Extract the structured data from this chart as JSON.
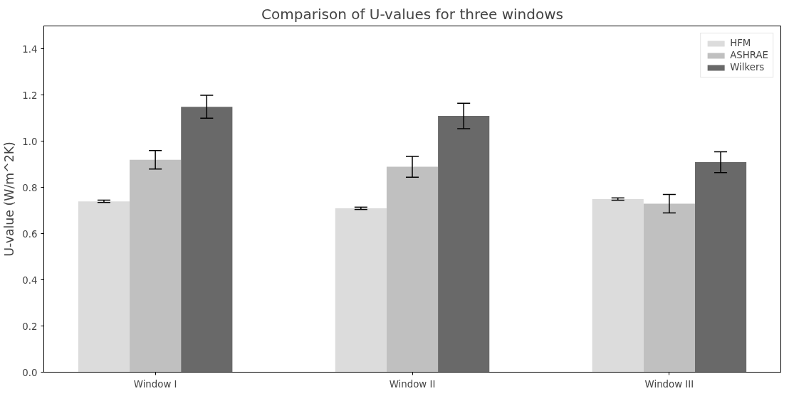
{
  "chart_data": {
    "type": "bar",
    "title": "Comparison of U-values for three windows",
    "ylabel": "U-value (W/m^2K)",
    "categories": [
      "Window I",
      "Window II",
      "Window III"
    ],
    "series": [
      {
        "name": "HFM",
        "color": "#dcdcdc",
        "values": [
          0.74,
          0.71,
          0.75
        ],
        "errors": [
          0.005,
          0.005,
          0.005
        ]
      },
      {
        "name": "ASHRAE",
        "color": "#c0c0c0",
        "values": [
          0.92,
          0.89,
          0.73
        ],
        "errors": [
          0.04,
          0.045,
          0.04
        ]
      },
      {
        "name": "Wilkers",
        "color": "#696969",
        "values": [
          1.15,
          1.11,
          0.91
        ],
        "errors": [
          0.05,
          0.055,
          0.045
        ]
      }
    ],
    "ylim": [
      0,
      1.5
    ],
    "yticks": [
      {
        "value": 0,
        "label": "0.0"
      },
      {
        "value": 0.2,
        "label": "0.2"
      },
      {
        "value": 0.4,
        "label": "0.4"
      },
      {
        "value": 0.6,
        "label": "0.6"
      },
      {
        "value": 0.8,
        "label": "0.8"
      },
      {
        "value": 1.0,
        "label": "1.0"
      },
      {
        "value": 1.2,
        "label": "1.2"
      },
      {
        "value": 1.4,
        "label": "1.4"
      }
    ],
    "grid": false,
    "legend": "top right"
  }
}
